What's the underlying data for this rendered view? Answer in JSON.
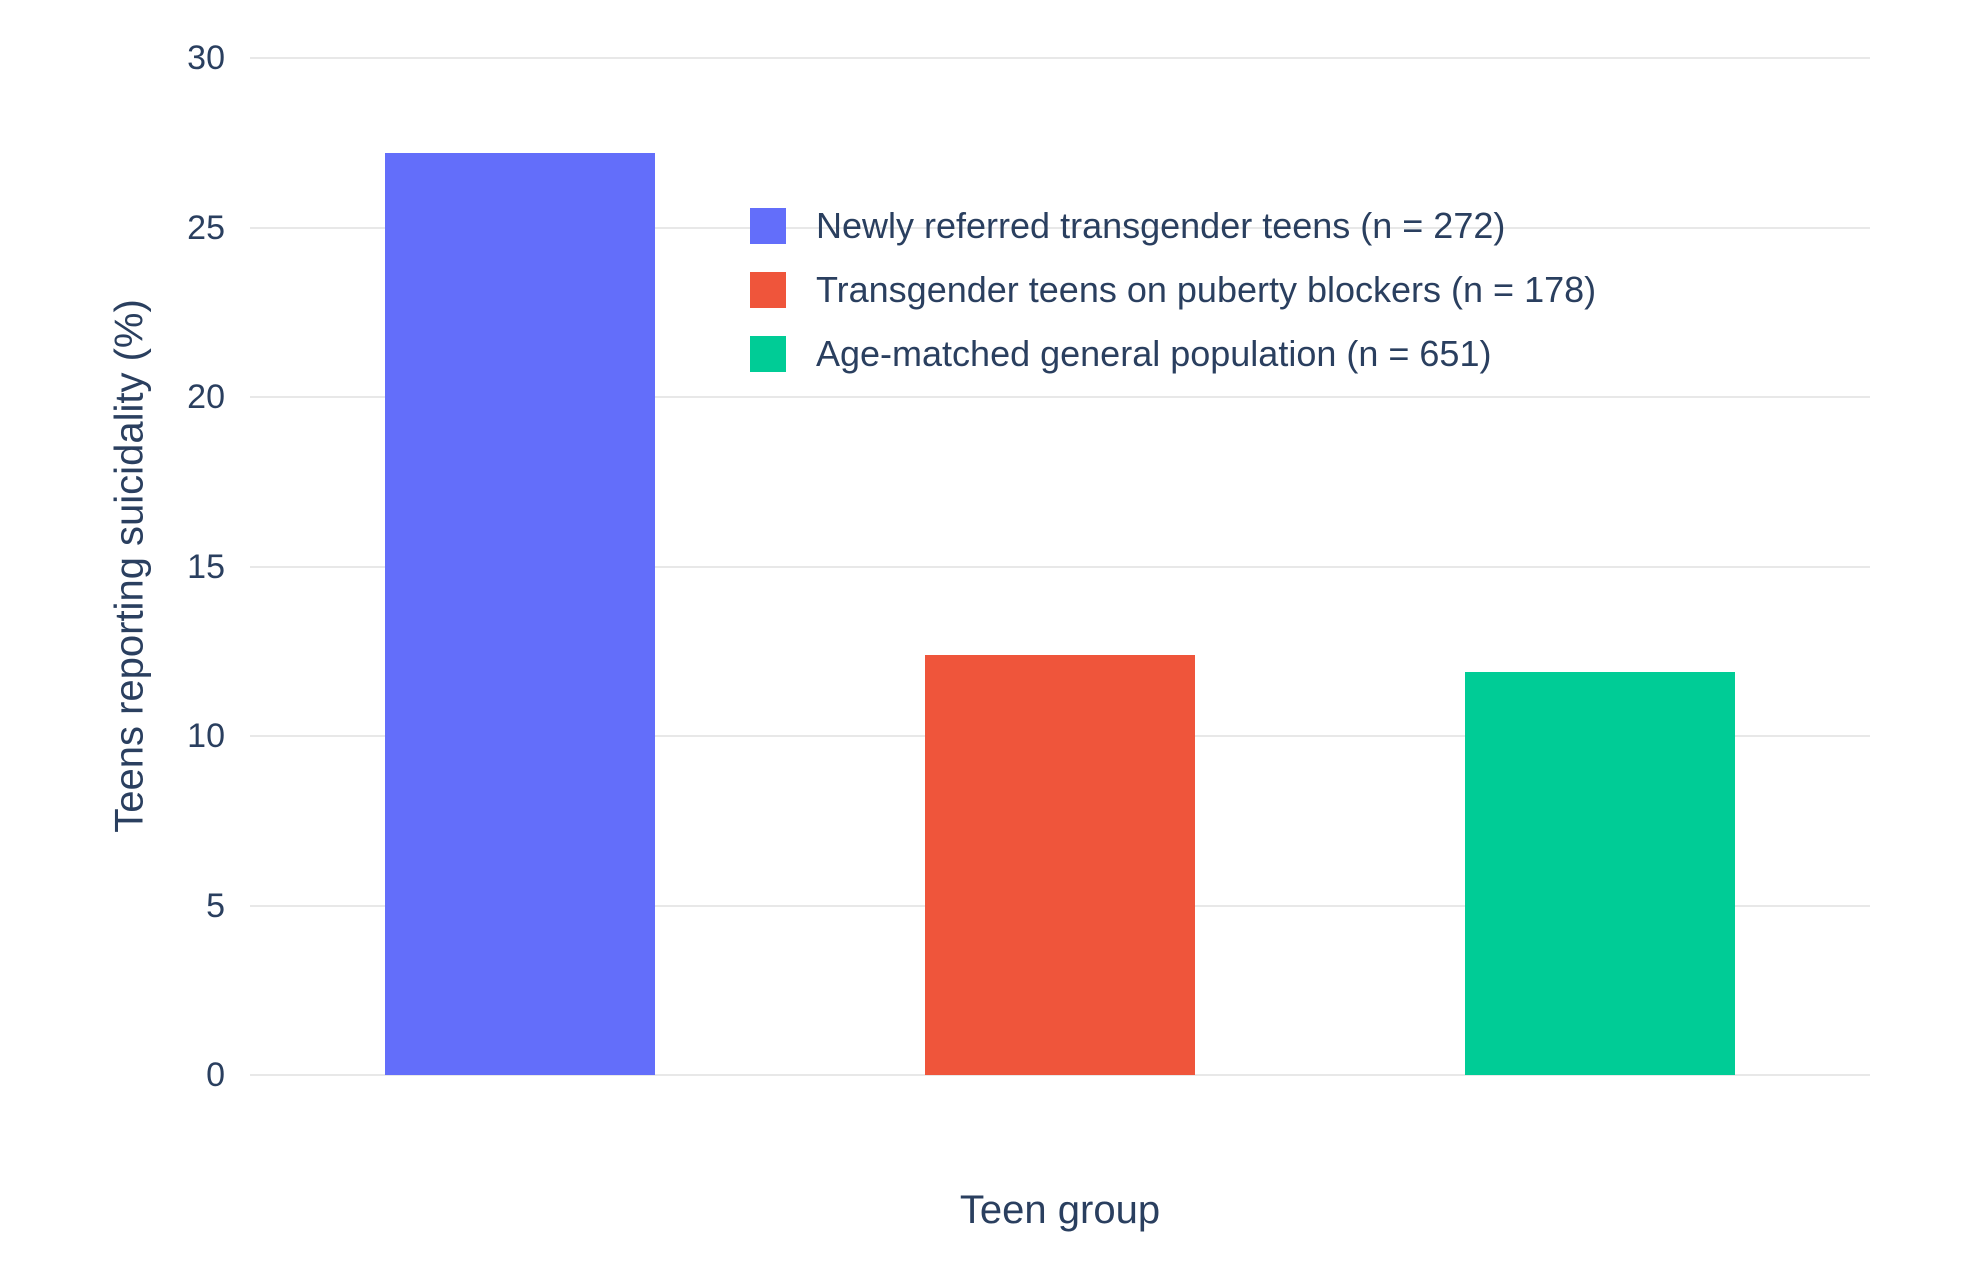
{
  "chart_data": {
    "type": "bar",
    "title": "",
    "xlabel": "Teen group",
    "ylabel": "Teens reporting suicidality (%)",
    "ylim": [
      0,
      30
    ],
    "ytick_step": 5,
    "grid": true,
    "legend_position": "inside-top-center",
    "background_color": "#ffffff",
    "grid_color": "#e8e8e8",
    "text_color": "#2a3f5f",
    "categories": [
      "Newly referred transgender teens (n = 272)",
      "Transgender teens on puberty blockers (n = 178)",
      "Age-matched general population (n = 651)"
    ],
    "series": [
      {
        "name": "Newly referred transgender teens (n = 272)",
        "value": 27.2,
        "color": "#636EFA"
      },
      {
        "name": "Transgender teens on puberty blockers (n = 178)",
        "value": 12.4,
        "color": "#EF553B"
      },
      {
        "name": "Age-matched general population (n = 651)",
        "value": 11.9,
        "color": "#00CC96"
      }
    ]
  }
}
